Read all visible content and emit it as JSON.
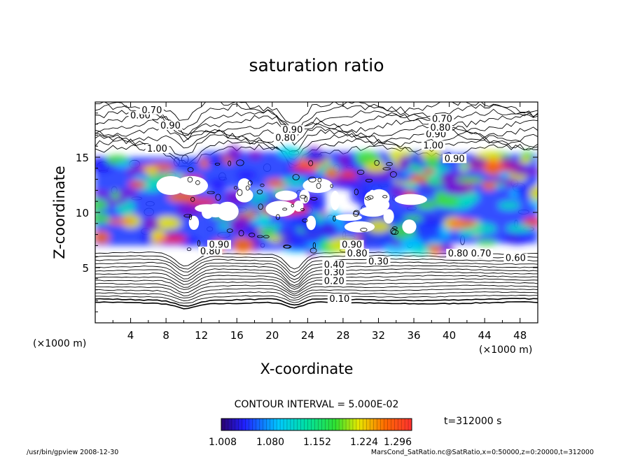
{
  "chart_data": {
    "type": "heatmap",
    "title": "saturation ratio",
    "xlabel": "X-coordinate",
    "ylabel": "Z-coordinate",
    "x_unit": "(×1000 m)",
    "z_unit": "(×1000 m)",
    "xlim": [
      0,
      50
    ],
    "ylim": [
      0,
      20
    ],
    "x_ticks": [
      "4",
      "8",
      "12",
      "16",
      "20",
      "24",
      "28",
      "32",
      "36",
      "40",
      "44",
      "48"
    ],
    "y_ticks": [
      "5",
      "10",
      "15"
    ],
    "contour_interval_text": "CONTOUR INTERVAL = 5.000E-02",
    "time_text": "t=312000 s",
    "colorbar": {
      "min": 1.008,
      "max": 1.296,
      "tick_labels": [
        "1.008",
        "1.080",
        "1.152",
        "1.224",
        "1.296"
      ]
    },
    "contour_labels": [
      {
        "text": "0.10",
        "x": 27.6,
        "z": 1.9
      },
      {
        "text": "0.20",
        "x": 27.0,
        "z": 3.5
      },
      {
        "text": "0.30",
        "x": 27.0,
        "z": 4.3
      },
      {
        "text": "0.40",
        "x": 27.0,
        "z": 5.0
      },
      {
        "text": "0.80",
        "x": 13.0,
        "z": 6.2
      },
      {
        "text": "0.90",
        "x": 14.0,
        "z": 6.8
      },
      {
        "text": "0.90",
        "x": 29.0,
        "z": 6.8
      },
      {
        "text": "0.80",
        "x": 29.6,
        "z": 6.0
      },
      {
        "text": "0.60",
        "x": 5.1,
        "z": 18.5
      },
      {
        "text": "0.70",
        "x": 6.4,
        "z": 19.0
      },
      {
        "text": "0.90",
        "x": 8.5,
        "z": 17.6
      },
      {
        "text": "1.00",
        "x": 7.0,
        "z": 15.5
      },
      {
        "text": "0.80",
        "x": 21.5,
        "z": 16.5
      },
      {
        "text": "0.90",
        "x": 22.3,
        "z": 17.2
      },
      {
        "text": "0.90",
        "x": 38.5,
        "z": 16.8
      },
      {
        "text": "0.80",
        "x": 39.0,
        "z": 17.4
      },
      {
        "text": "0.70",
        "x": 39.2,
        "z": 18.2
      },
      {
        "text": "1.00",
        "x": 38.2,
        "z": 15.8
      },
      {
        "text": "0.90",
        "x": 40.6,
        "z": 14.6
      },
      {
        "text": "0.80",
        "x": 41.0,
        "z": 6.0
      },
      {
        "text": "0.70",
        "x": 43.6,
        "z": 6.0
      },
      {
        "text": "0.60",
        "x": 47.5,
        "z": 5.6
      },
      {
        "text": "0.30",
        "x": 32.0,
        "z": 5.3
      }
    ],
    "colored_regions": [
      {
        "x": [
          0,
          50
        ],
        "z": [
          6.2,
          15.2
        ],
        "note": "supersaturated bands"
      }
    ]
  },
  "footer": {
    "left": "/usr/bin/gpview  2008-12-30",
    "right": "MarsCond_SatRatio.nc@SatRatio,x=0:50000,z=0:20000,t=312000"
  }
}
